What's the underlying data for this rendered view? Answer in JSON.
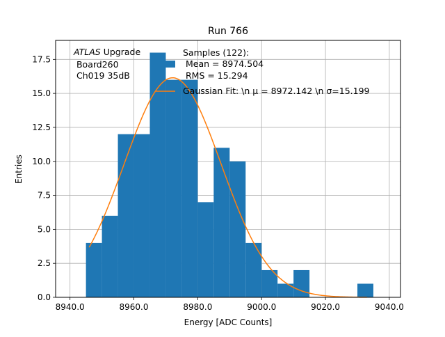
{
  "chart_data": {
    "type": "bar",
    "title": "Run 766",
    "xlabel": "Energy [ADC Counts]",
    "ylabel": "Entries",
    "xlim": [
      8935.5,
      9043.5
    ],
    "ylim": [
      0,
      18.9
    ],
    "x_ticks": [
      8940,
      8960,
      8980,
      9000,
      9020,
      9040
    ],
    "x_tick_labels": [
      "8940.0",
      "8960.0",
      "8980.0",
      "9000.0",
      "9020.0",
      "9040.0"
    ],
    "y_ticks": [
      0,
      2.5,
      5,
      7.5,
      10,
      12.5,
      15,
      17.5
    ],
    "y_tick_labels": [
      "0.0",
      "2.5",
      "5.0",
      "7.5",
      "10.0",
      "12.5",
      "15.0",
      "17.5"
    ],
    "grid": true,
    "bin_width": 5,
    "bin_left_edges": [
      8945,
      8950,
      8955,
      8960,
      8965,
      8970,
      8975,
      8980,
      8985,
      8990,
      8995,
      9000,
      9005,
      9010,
      9015,
      9020,
      9025,
      9030
    ],
    "values": [
      4,
      6,
      12,
      12,
      18,
      16,
      16,
      7,
      11,
      10,
      4,
      2,
      1,
      2,
      0,
      0,
      0,
      1
    ],
    "bar_color": "#1f77b4",
    "fit": {
      "mu": 8972.142,
      "sigma": 15.199,
      "amplitude": 16.15,
      "x_range": [
        8946,
        9033
      ],
      "color": "#ff7f0e"
    },
    "legend": {
      "placement": "top-center",
      "entries": [
        {
          "lines": [
            "Samples (122):",
            " Mean = 8974.504",
            " RMS = 15.294"
          ]
        },
        {
          "lines": [
            "Gaussian Fit: \\n μ = 8972.142 \\n σ=15.199"
          ]
        }
      ]
    },
    "annotation": {
      "italic": "ATLAS",
      "rest": " Upgrade",
      "lines": [
        " Board260",
        " Ch019 35dB"
      ]
    }
  }
}
